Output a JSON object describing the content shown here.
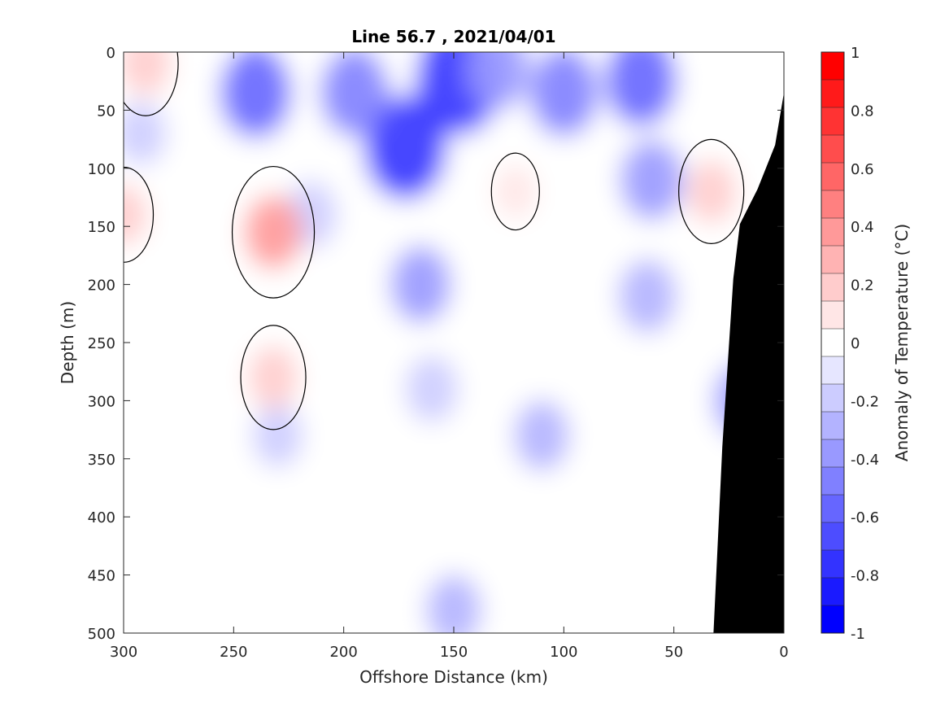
{
  "chart_data": {
    "type": "heatmap",
    "title": "Line 56.7 , 2021/04/01",
    "xlabel": "Offshore Distance (km)",
    "ylabel": "Depth (m)",
    "xlim": [
      300,
      0
    ],
    "ylim": [
      0,
      500
    ],
    "x_reversed": true,
    "y_reversed": true,
    "x_ticks": [
      300,
      250,
      200,
      150,
      100,
      50,
      0
    ],
    "y_ticks": [
      0,
      50,
      100,
      150,
      200,
      250,
      300,
      350,
      400,
      450,
      500
    ],
    "colorbar": {
      "label": "Anomaly of Temperature (°C)",
      "range": [
        -1,
        1
      ],
      "ticks": [
        1,
        0.8,
        0.6,
        0.4,
        0.2,
        0,
        -0.2,
        -0.4,
        -0.6,
        -0.8,
        -1
      ],
      "levels": [
        -1,
        -0.9,
        -0.8,
        -0.7,
        -0.6,
        -0.5,
        -0.4,
        -0.3,
        -0.2,
        -0.1,
        0.1,
        0.2,
        0.3,
        0.4,
        0.5,
        0.6,
        0.7,
        0.8,
        0.9,
        1
      ],
      "colors": [
        "#0000ff",
        "#1a1aff",
        "#3333ff",
        "#4d4dff",
        "#6666ff",
        "#8080ff",
        "#9999ff",
        "#b3b3ff",
        "#ccccff",
        "#e6e6ff",
        "#ffffff",
        "#ffe6e6",
        "#ffcccc",
        "#ffb3b3",
        "#ff9999",
        "#ff8080",
        "#ff6666",
        "#ff4d4d",
        "#ff3333",
        "#ff1a1a",
        "#ff0000"
      ]
    },
    "zero_contour_color": "#000000",
    "bathymetry_color": "#000000",
    "grid": false,
    "anomaly_features": [
      {
        "x": 148,
        "depth": 25,
        "value": -0.85
      },
      {
        "x": 172,
        "depth": 82,
        "value": -0.8
      },
      {
        "x": 240,
        "depth": 35,
        "value": -0.6
      },
      {
        "x": 195,
        "depth": 35,
        "value": -0.55
      },
      {
        "x": 100,
        "depth": 35,
        "value": -0.55
      },
      {
        "x": 65,
        "depth": 25,
        "value": -0.6
      },
      {
        "x": 130,
        "depth": 15,
        "value": -0.45
      },
      {
        "x": 165,
        "depth": 200,
        "value": -0.4
      },
      {
        "x": 160,
        "depth": 290,
        "value": -0.25
      },
      {
        "x": 62,
        "depth": 210,
        "value": -0.35
      },
      {
        "x": 60,
        "depth": 110,
        "value": -0.45
      },
      {
        "x": 18,
        "depth": 300,
        "value": -0.4
      },
      {
        "x": 110,
        "depth": 330,
        "value": -0.3
      },
      {
        "x": 215,
        "depth": 140,
        "value": -0.25
      },
      {
        "x": 150,
        "depth": 480,
        "value": -0.3
      },
      {
        "x": 230,
        "depth": 330,
        "value": -0.2
      },
      {
        "x": 292,
        "depth": 70,
        "value": -0.2
      },
      {
        "x": 232,
        "depth": 155,
        "value": 0.35
      },
      {
        "x": 232,
        "depth": 280,
        "value": 0.2
      },
      {
        "x": 33,
        "depth": 120,
        "value": 0.2
      },
      {
        "x": 290,
        "depth": 10,
        "value": 0.2
      },
      {
        "x": 122,
        "depth": 120,
        "value": 0.05
      },
      {
        "x": 300,
        "depth": 140,
        "value": 0.15
      }
    ],
    "bathymetry": [
      [
        32,
        500
      ],
      [
        28,
        340
      ],
      [
        23,
        195
      ],
      [
        20,
        148
      ],
      [
        12,
        118
      ],
      [
        4,
        80
      ],
      [
        0,
        35
      ]
    ]
  }
}
